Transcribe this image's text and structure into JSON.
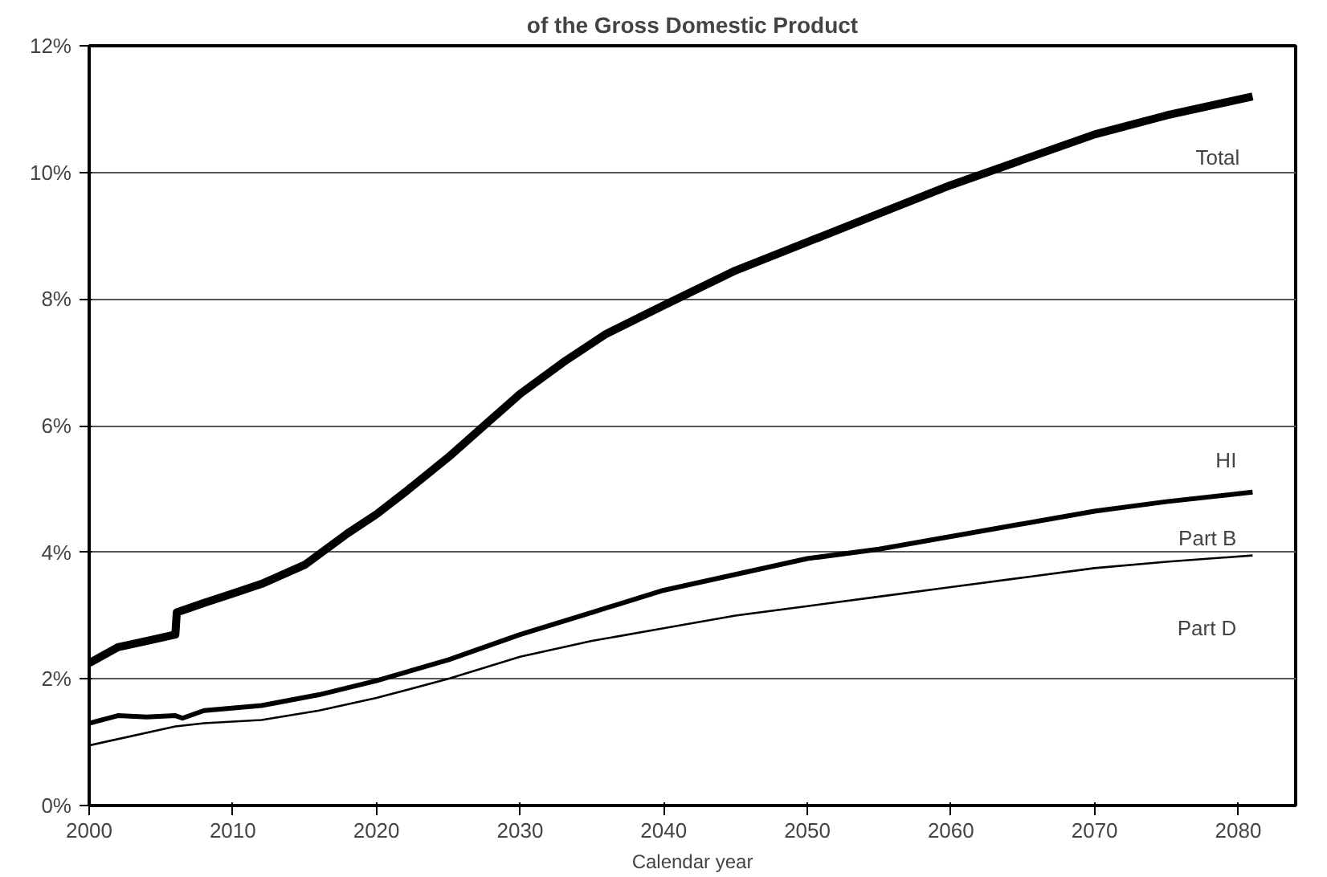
{
  "chart_data": {
    "type": "line",
    "title": "of the Gross Domestic Product",
    "xlabel": "Calendar year",
    "xlim": [
      2000,
      2084
    ],
    "xticks": [
      2000,
      2010,
      2020,
      2030,
      2040,
      2050,
      2060,
      2070,
      2080
    ],
    "ylim": [
      0,
      12
    ],
    "yticks": [
      {
        "value": 0,
        "label": "0%"
      },
      {
        "value": 2,
        "label": "2%"
      },
      {
        "value": 4,
        "label": "4%"
      },
      {
        "value": 6,
        "label": "6%"
      },
      {
        "value": 8,
        "label": "8%"
      },
      {
        "value": 10,
        "label": "10%"
      },
      {
        "value": 12,
        "label": "12%"
      }
    ],
    "grid": "y",
    "marker": "none",
    "line_style": "solid",
    "series": [
      {
        "name": "Total",
        "color": "#000000",
        "x": [
          2000,
          2002,
          2004,
          2006,
          2006.1,
          2008,
          2010,
          2012,
          2015,
          2018,
          2020,
          2022,
          2025,
          2028,
          2030,
          2033,
          2036,
          2040,
          2045,
          2050,
          2055,
          2060,
          2065,
          2070,
          2075,
          2081
        ],
        "values": [
          2.25,
          2.5,
          2.6,
          2.7,
          3.05,
          3.2,
          3.35,
          3.5,
          3.8,
          4.3,
          4.6,
          4.95,
          5.5,
          6.1,
          6.5,
          7.0,
          7.45,
          7.9,
          8.45,
          8.9,
          9.35,
          9.8,
          10.2,
          10.6,
          10.9,
          11.2
        ]
      },
      {
        "name": "HI",
        "color": "#000000",
        "x": [
          2000,
          2002,
          2004,
          2006,
          2006.5,
          2008,
          2012,
          2016,
          2020,
          2025,
          2030,
          2035,
          2040,
          2045,
          2050,
          2055,
          2060,
          2065,
          2070,
          2075,
          2081
        ],
        "values": [
          1.3,
          1.42,
          1.4,
          1.42,
          1.38,
          1.5,
          1.58,
          1.75,
          1.97,
          2.3,
          2.7,
          3.05,
          3.4,
          3.65,
          3.9,
          4.05,
          4.25,
          4.45,
          4.65,
          4.8,
          4.95
        ]
      },
      {
        "name": "Part B",
        "color": "#000000",
        "x": [
          2000,
          2006,
          2008,
          2012,
          2016,
          2020,
          2025,
          2030,
          2035,
          2040,
          2045,
          2050,
          2055,
          2060,
          2065,
          2070,
          2075,
          2081
        ],
        "values": [
          0.95,
          1.25,
          1.3,
          1.35,
          1.5,
          1.7,
          2.0,
          2.35,
          2.6,
          2.8,
          3.0,
          3.15,
          3.3,
          3.45,
          3.6,
          3.75,
          3.85,
          3.95
        ]
      }
    ],
    "annotations": [
      "Part D"
    ]
  }
}
